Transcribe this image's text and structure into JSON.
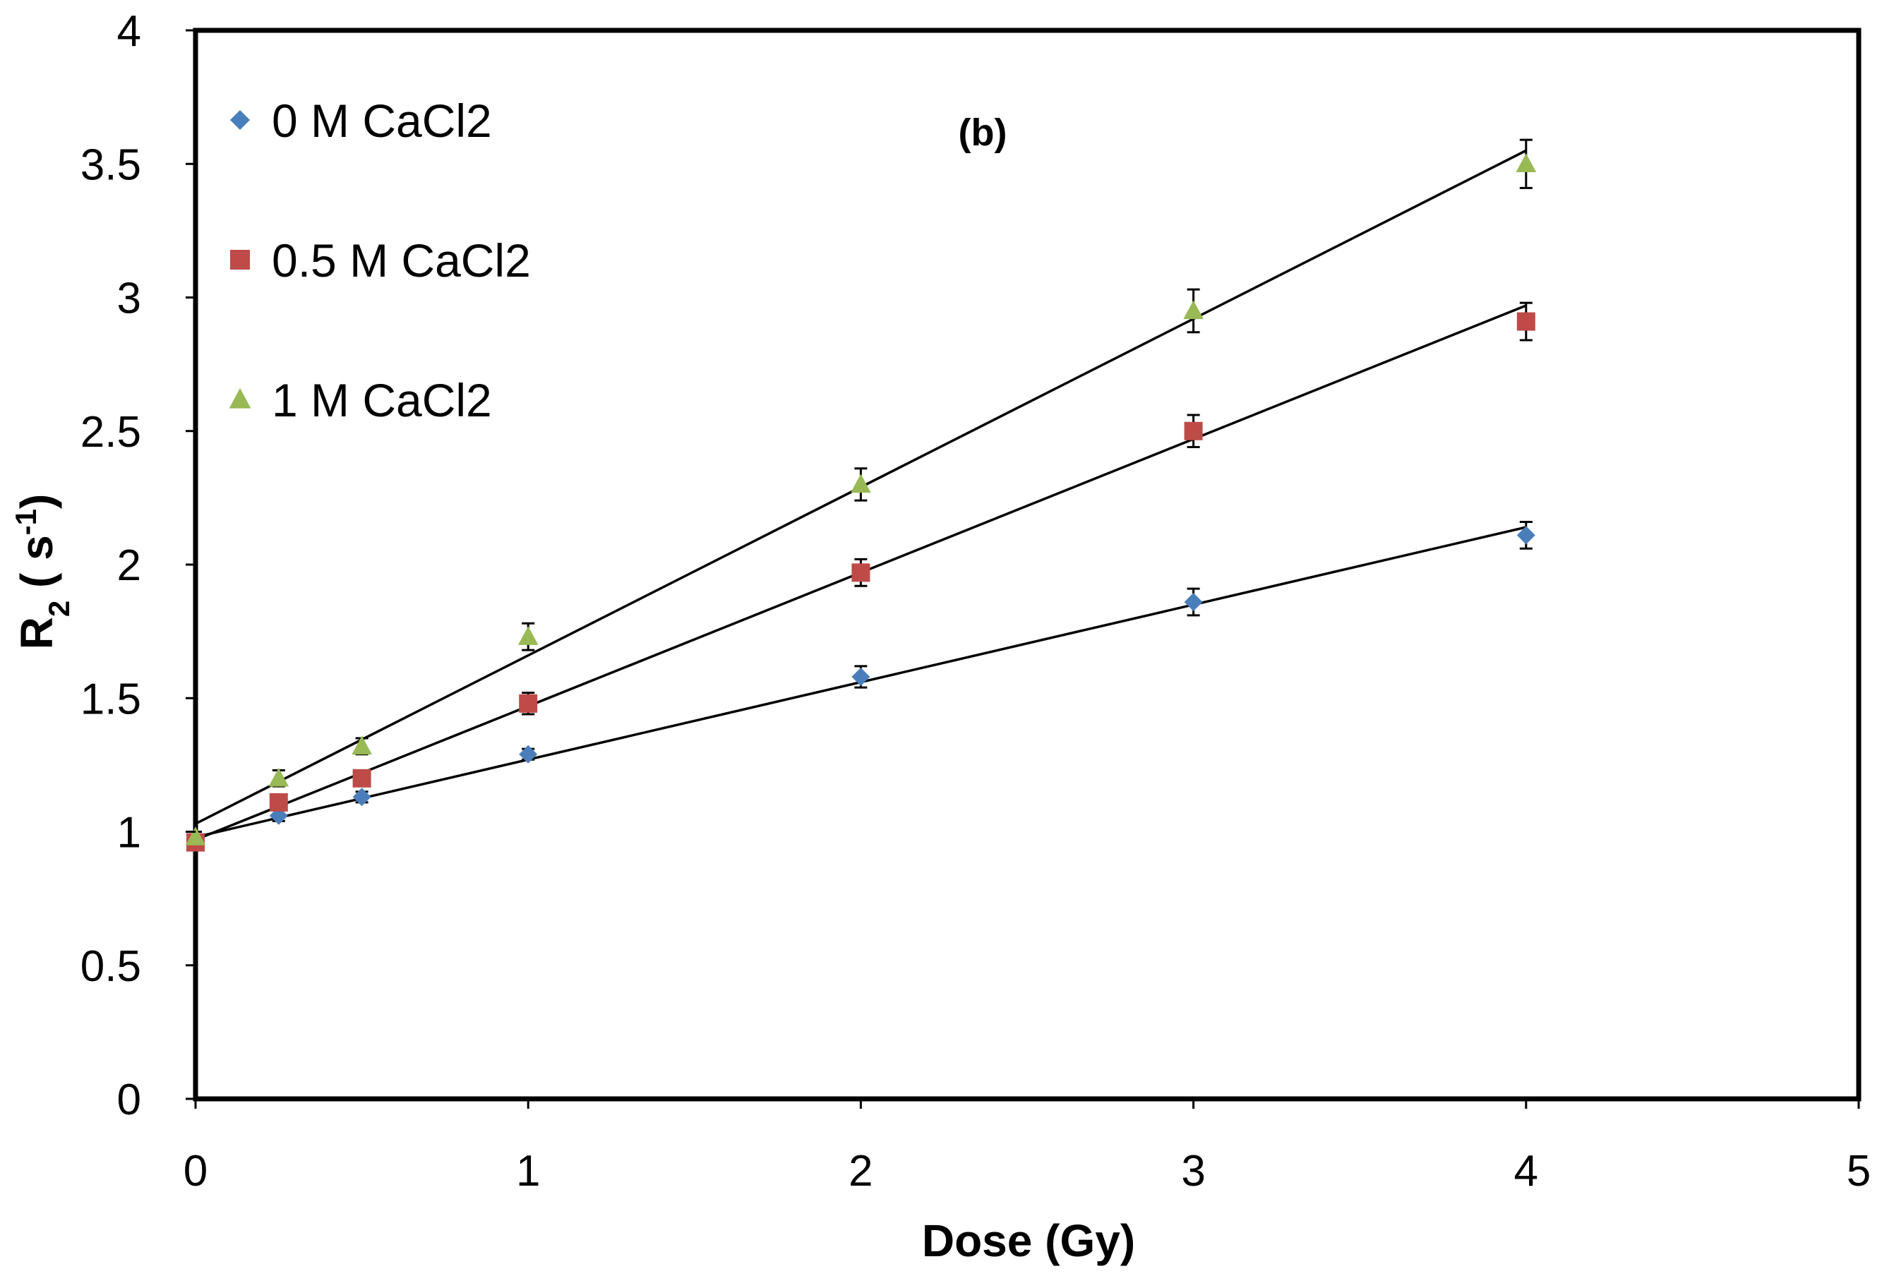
{
  "chart_data": {
    "type": "scatter",
    "title": "",
    "annotation": "(b)",
    "xlabel": "Dose (Gy)",
    "ylabel": {
      "main": "R",
      "sub": "2",
      "unit_open": " ( s",
      "sup": "-1",
      "unit_close": ")"
    },
    "xlim": [
      0,
      5
    ],
    "ylim": [
      0,
      4
    ],
    "xticks": [
      "0",
      "1",
      "2",
      "3",
      "4",
      "5"
    ],
    "yticks": [
      "0",
      "0.5",
      "1",
      "1.5",
      "2",
      "2.5",
      "3",
      "3.5",
      "4"
    ],
    "grid": false,
    "legend_position": "top-left",
    "x": [
      0,
      0.25,
      0.5,
      1,
      2,
      3,
      4
    ],
    "series": [
      {
        "name": "0 M CaCl2",
        "marker": "diamond",
        "color": "#4A7EBB",
        "values": [
          0.97,
          1.06,
          1.13,
          1.29,
          1.58,
          1.86,
          2.11
        ],
        "errors": [
          0.02,
          0.02,
          0.02,
          0.02,
          0.04,
          0.05,
          0.05
        ],
        "fit": {
          "intercept": 0.98,
          "slope": 0.29
        }
      },
      {
        "name": "0.5 M CaCl2",
        "marker": "square",
        "color": "#BE4B48",
        "values": [
          0.96,
          1.11,
          1.2,
          1.48,
          1.97,
          2.5,
          2.91
        ],
        "errors": [
          0.02,
          0.02,
          0.02,
          0.04,
          0.05,
          0.06,
          0.07
        ],
        "fit": {
          "intercept": 0.97,
          "slope": 0.5
        }
      },
      {
        "name": "1 M CaCl2",
        "marker": "triangle",
        "color": "#98B954",
        "values": [
          0.98,
          1.2,
          1.32,
          1.73,
          2.3,
          2.95,
          3.5
        ],
        "errors": [
          0.02,
          0.03,
          0.03,
          0.05,
          0.06,
          0.08,
          0.09
        ],
        "fit": {
          "intercept": 1.03,
          "slope": 0.63
        }
      }
    ]
  }
}
